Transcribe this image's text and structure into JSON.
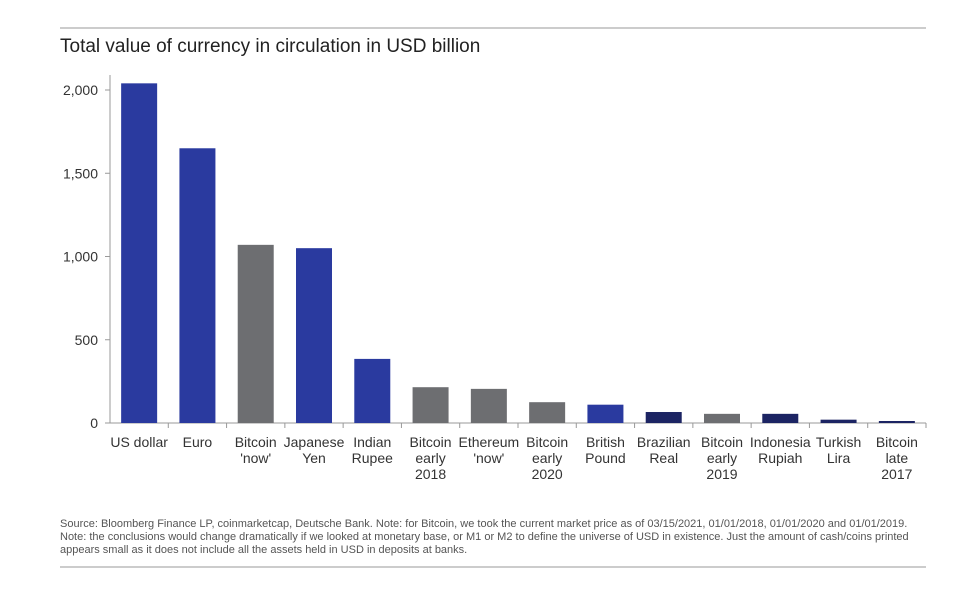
{
  "chart_data": {
    "type": "bar",
    "title": "Total value of currency in circulation in USD billion",
    "categories": [
      "US dollar",
      "Euro",
      "Bitcoin\n'now'",
      "Japanese\nYen",
      "Indian\nRupee",
      "Bitcoin\nearly\n2018",
      "Ethereum\n'now'",
      "Bitcoin\nearly\n2020",
      "British\nPound",
      "Brazilian\nReal",
      "Bitcoin\nearly\n2019",
      "Indonesia\nRupiah",
      "Turkish\nLira",
      "Bitcoin\nlate\n2017"
    ],
    "values": [
      2040,
      1650,
      1070,
      1050,
      385,
      215,
      205,
      125,
      110,
      66,
      55,
      55,
      20,
      12
    ],
    "colors": [
      "#2a3a9f",
      "#2a3a9f",
      "#6d6e71",
      "#2a3a9f",
      "#2a3a9f",
      "#6d6e71",
      "#6d6e71",
      "#6d6e71",
      "#2a3a9f",
      "#1c2463",
      "#6d6e71",
      "#1c2463",
      "#1c2463",
      "#1c2463"
    ],
    "ylim": [
      0,
      2000
    ],
    "yticks": [
      0,
      500,
      {
        "value": 1000,
        "label": "1,000"
      },
      {
        "value": 1500,
        "label": "1,500"
      },
      {
        "value": 2000,
        "label": "2,000"
      }
    ],
    "source": "Source: Bloomberg Finance LP, coinmarketcap, Deutsche Bank. Note: for Bitcoin, we took the current market price as of 03/15/2021, 01/01/2018, 01/01/2020 and 01/01/2019. Note: the conclusions would change dramatically if we looked at monetary base, or M1 or M2 to define the universe of USD in existence. Just the amount of cash/coins printed appears small as it does not include all the assets held in USD in deposits at banks."
  }
}
